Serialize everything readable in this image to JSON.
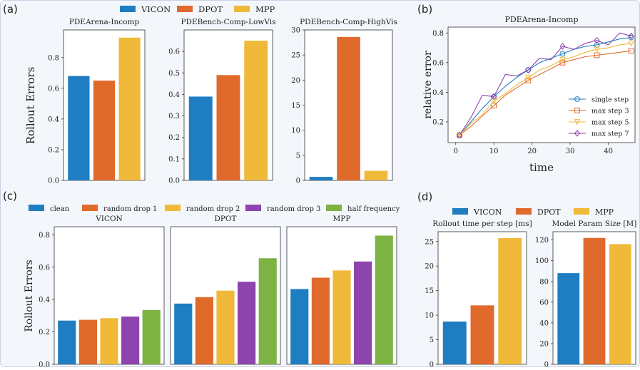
{
  "colors": {
    "vicon": "#1f7ec2",
    "dpot": "#e06a2c",
    "mpp": "#f0b93a",
    "purple": "#8e44ad",
    "green": "#7cb342",
    "panel_bg": "#f3f6fb",
    "panel_border": "#c9d3e3"
  },
  "chart_data": [
    {
      "id": "a",
      "panel_label": "(a)",
      "type": "bar",
      "legend": [
        "VICON",
        "DPOT",
        "MPP"
      ],
      "ylabel": "Rollout Errors",
      "subplots": [
        {
          "title": "PDEArena-Incomp",
          "ylim": [
            0,
            0.98
          ],
          "ticks": [
            "0.0",
            "0.2",
            "0.4",
            "0.6",
            "0.8"
          ],
          "tick_values": [
            0,
            0.2,
            0.4,
            0.6,
            0.8
          ],
          "values": [
            0.68,
            0.65,
            0.93
          ]
        },
        {
          "title": "PDEBench-Comp-LowVis",
          "ylim": [
            0,
            0.7
          ],
          "ticks": [
            "0.0",
            "0.1",
            "0.2",
            "0.3",
            "0.4",
            "0.5",
            "0.6"
          ],
          "tick_values": [
            0,
            0.1,
            0.2,
            0.3,
            0.4,
            0.5,
            0.6
          ],
          "values": [
            0.39,
            0.49,
            0.65
          ]
        },
        {
          "title": "PDEBench-Comp-HighVis",
          "ylim": [
            0,
            30
          ],
          "ticks": [
            "0",
            "5",
            "10",
            "15",
            "20",
            "25",
            "30"
          ],
          "tick_values": [
            0,
            5,
            10,
            15,
            20,
            25,
            30
          ],
          "values": [
            0.7,
            28.6,
            1.9
          ]
        }
      ]
    },
    {
      "id": "b",
      "panel_label": "(b)",
      "type": "line",
      "title": "PDEArena-Incomp",
      "xlabel": "time",
      "ylabel": "relative error",
      "xlim": [
        -2,
        47
      ],
      "ylim": [
        0.06,
        0.84
      ],
      "xticks": [
        "0",
        "10",
        "20",
        "30",
        "40"
      ],
      "xtick_values": [
        0,
        10,
        20,
        30,
        40
      ],
      "yticks": [
        "0.2",
        "0.4",
        "0.6",
        "0.8"
      ],
      "ytick_values": [
        0.2,
        0.4,
        0.6,
        0.8
      ],
      "x": [
        1,
        4,
        7,
        10,
        13,
        16,
        19,
        22,
        25,
        28,
        31,
        34,
        37,
        40,
        43,
        46
      ],
      "series": [
        {
          "name": "single step",
          "values": [
            0.11,
            0.2,
            0.29,
            0.37,
            0.44,
            0.5,
            0.55,
            0.6,
            0.63,
            0.66,
            0.69,
            0.71,
            0.72,
            0.74,
            0.76,
            0.77
          ]
        },
        {
          "name": "max step 3",
          "values": [
            0.11,
            0.17,
            0.24,
            0.31,
            0.38,
            0.43,
            0.48,
            0.52,
            0.56,
            0.6,
            0.62,
            0.64,
            0.65,
            0.66,
            0.67,
            0.68
          ]
        },
        {
          "name": "max step 5",
          "values": [
            0.11,
            0.19,
            0.25,
            0.34,
            0.39,
            0.45,
            0.5,
            0.55,
            0.58,
            0.62,
            0.64,
            0.67,
            0.69,
            0.7,
            0.72,
            0.73
          ]
        },
        {
          "name": "max step 7",
          "values": [
            0.11,
            0.23,
            0.38,
            0.37,
            0.52,
            0.51,
            0.55,
            0.63,
            0.62,
            0.71,
            0.69,
            0.73,
            0.75,
            0.72,
            0.8,
            0.78
          ]
        }
      ],
      "markers": [
        "o",
        "s",
        "v",
        "D"
      ],
      "marker_x": [
        1,
        10,
        19,
        28,
        37,
        46
      ],
      "legend_loc": "lower-right"
    },
    {
      "id": "c",
      "panel_label": "(c)",
      "type": "bar",
      "legend": [
        "clean",
        "random drop 1",
        "random drop 2",
        "random drop 3",
        "half frequency"
      ],
      "ylabel": "Rollout Errors",
      "ylim": [
        0,
        0.85
      ],
      "ticks": [
        "0.0",
        "0.2",
        "0.4",
        "0.6",
        "0.8"
      ],
      "tick_values": [
        0,
        0.2,
        0.4,
        0.6,
        0.8
      ],
      "subplots": [
        {
          "title": "VICON",
          "values": [
            0.27,
            0.275,
            0.285,
            0.295,
            0.335
          ]
        },
        {
          "title": "DPOT",
          "values": [
            0.375,
            0.415,
            0.455,
            0.51,
            0.655
          ]
        },
        {
          "title": "MPP",
          "values": [
            0.465,
            0.535,
            0.58,
            0.635,
            0.795
          ]
        }
      ]
    },
    {
      "id": "d",
      "panel_label": "(d)",
      "type": "bar",
      "legend": [
        "VICON",
        "DPOT",
        "MPP"
      ],
      "subplots": [
        {
          "title": "Rollout time per step [ms]",
          "ylim": [
            0,
            27
          ],
          "ticks": [
            "0",
            "5",
            "10",
            "15",
            "20",
            "25"
          ],
          "tick_values": [
            0,
            5,
            10,
            15,
            20,
            25
          ],
          "values": [
            8.7,
            12.0,
            25.7
          ]
        },
        {
          "title": "Model Param Size [M]",
          "ylim": [
            0,
            128
          ],
          "ticks": [
            "0",
            "20",
            "40",
            "60",
            "80",
            "100",
            "120"
          ],
          "tick_values": [
            0,
            20,
            40,
            60,
            80,
            100,
            120
          ],
          "values": [
            88,
            122,
            116
          ]
        }
      ]
    }
  ]
}
